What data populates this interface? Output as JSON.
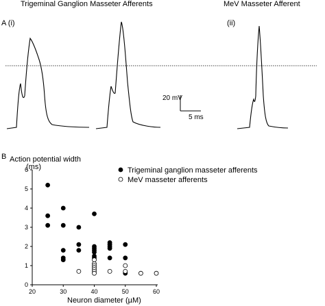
{
  "panel_a": {
    "label": "A (i)",
    "label_ii": "(ii)",
    "title_left": "Trigeminal Ganglion Masseter Afferents",
    "title_right": "MeV Masseter Afferent",
    "scalebar_v_label": "20 mV",
    "scalebar_h_label": "5 ms"
  },
  "panel_b": {
    "label": "B"
  },
  "chart_data": [
    {
      "type": "line",
      "panel": "A",
      "description_free": true,
      "series": [
        {
          "name": "",
          "shape": "tg-wide-spike"
        },
        {
          "name": "",
          "shape": "tg-narrow-spike"
        },
        {
          "name": "",
          "shape": "mev-spike"
        }
      ],
      "threshold_line": "dotted"
    },
    {
      "type": "scatter",
      "panel": "B",
      "title": "",
      "xlabel": "Neuron diameter (µM)",
      "ylabel": "Action potential width",
      "ylabel_unit": "(ms)",
      "xlim": [
        20,
        60
      ],
      "ylim": [
        0,
        6
      ],
      "xticks": [
        20,
        30,
        40,
        50,
        60
      ],
      "yticks": [
        0,
        1,
        2,
        3,
        4,
        5,
        6
      ],
      "legend_placement": "top-right",
      "series": [
        {
          "name": "Trigeminal ganglion masseter afferents",
          "marker": "filled-circle",
          "color": "#000000",
          "points": [
            [
              25,
              5.2
            ],
            [
              25,
              3.6
            ],
            [
              25,
              3.1
            ],
            [
              30,
              4.0
            ],
            [
              30,
              3.1
            ],
            [
              30,
              1.8
            ],
            [
              30,
              1.4
            ],
            [
              30,
              1.3
            ],
            [
              35,
              3.0
            ],
            [
              35,
              2.1
            ],
            [
              35,
              1.8
            ],
            [
              40,
              3.7
            ],
            [
              40,
              2.0
            ],
            [
              40,
              1.9
            ],
            [
              40,
              1.8
            ],
            [
              40,
              1.7
            ],
            [
              40,
              1.5
            ],
            [
              40,
              1.4
            ],
            [
              45,
              2.2
            ],
            [
              45,
              2.1
            ],
            [
              45,
              2.0
            ],
            [
              45,
              1.9
            ],
            [
              45,
              1.4
            ],
            [
              50,
              2.1
            ],
            [
              50,
              1.4
            ],
            [
              50,
              0.6
            ]
          ]
        },
        {
          "name": "MeV masseter afferents",
          "marker": "open-circle",
          "color": "#000000",
          "points": [
            [
              35,
              0.7
            ],
            [
              40,
              1.3
            ],
            [
              40,
              1.1
            ],
            [
              40,
              1.0
            ],
            [
              40,
              0.9
            ],
            [
              40,
              0.8
            ],
            [
              40,
              0.7
            ],
            [
              40,
              0.6
            ],
            [
              45,
              0.7
            ],
            [
              50,
              1.0
            ],
            [
              50,
              0.7
            ],
            [
              55,
              0.6
            ],
            [
              60,
              0.6
            ]
          ]
        }
      ]
    }
  ]
}
